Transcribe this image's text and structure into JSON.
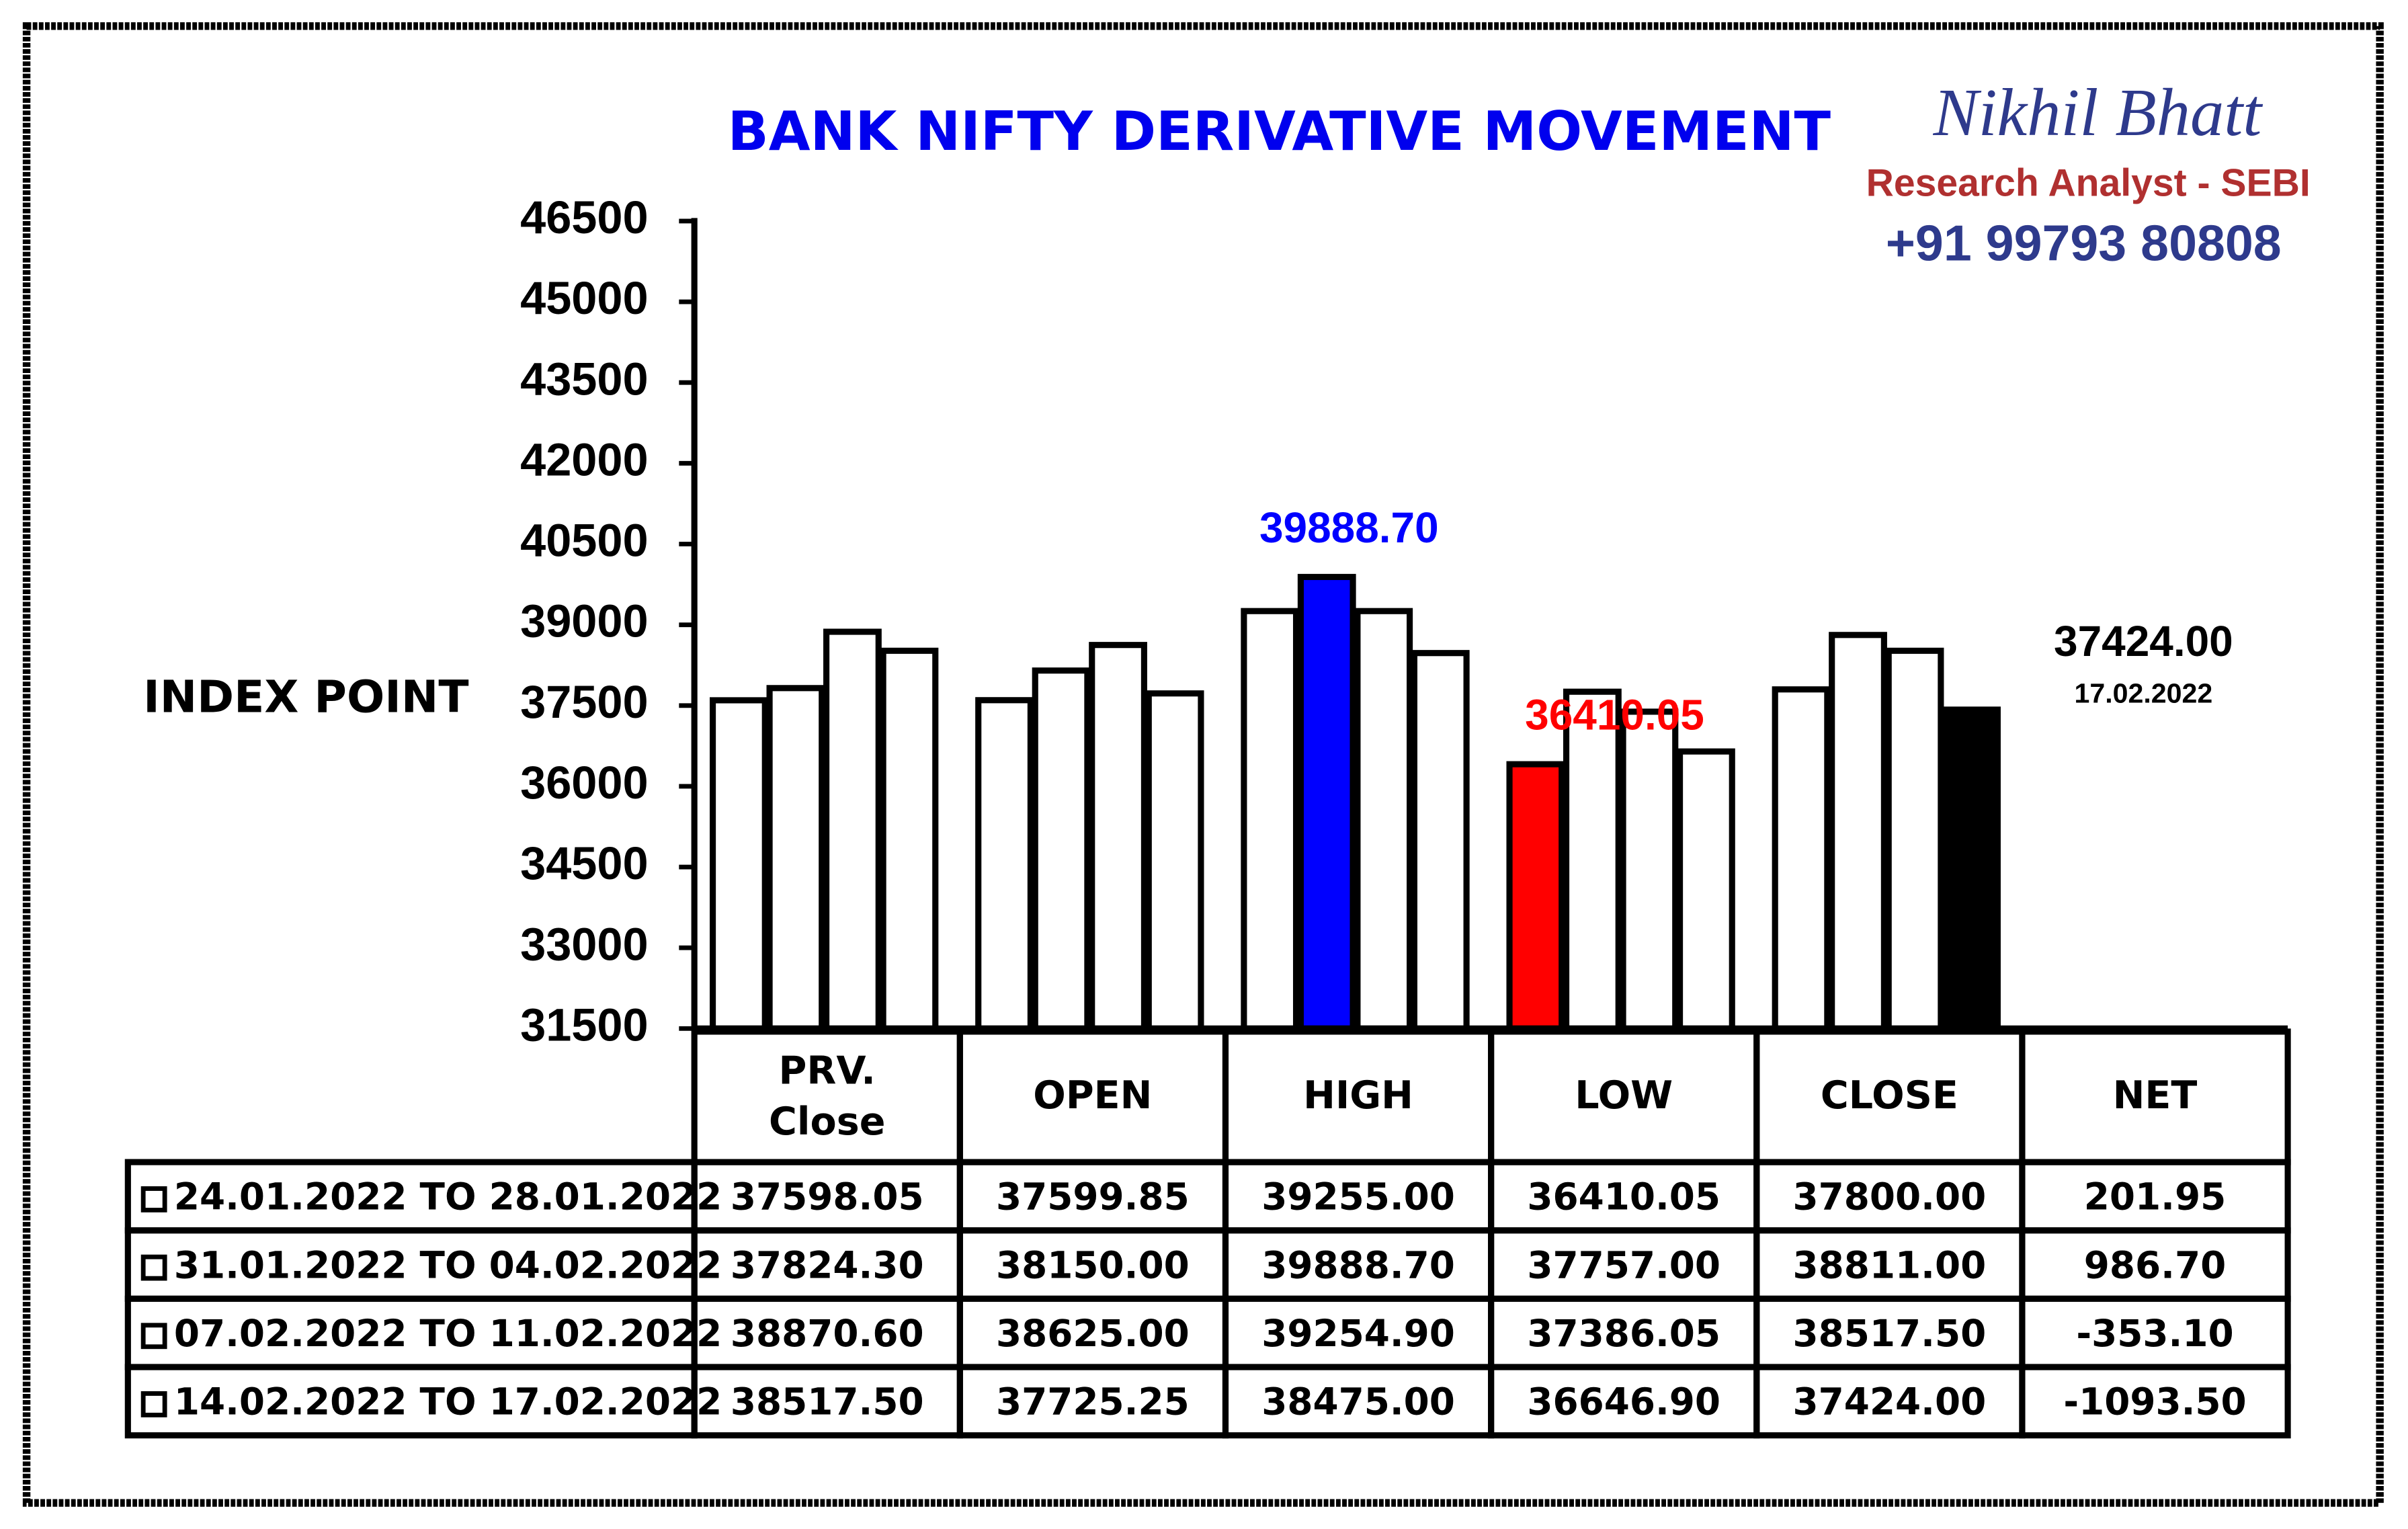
{
  "chart_data": {
    "type": "bar",
    "title": "BANK NIFTY DERIVATIVE MOVEMENT",
    "brand": {
      "name": "Nikhil Bhatt",
      "role": "Research Analyst - SEBI",
      "phone": "+91 99793 80808"
    },
    "y_label": "INDEX POINT",
    "categories": [
      "PRV. Close",
      "OPEN",
      "HIGH",
      "LOW",
      "CLOSE"
    ],
    "net_header": "NET",
    "note": "17.02.2022",
    "ylim": [
      31500,
      46500
    ],
    "yticks": [
      31500,
      33000,
      34500,
      36000,
      37500,
      39000,
      40500,
      42000,
      43500,
      45000,
      46500
    ],
    "series": [
      {
        "name": "24.01.2022 TO 28.01.2022",
        "values": [
          37598.05,
          37599.85,
          39255,
          36410.05,
          37800
        ],
        "value_labels": [
          "37598.05",
          "37599.85",
          "39255.00",
          "36410.05",
          "37800.00"
        ],
        "net": "201.95",
        "colors": [
          "#ffffff",
          "#ffffff",
          "#ffffff",
          "#ff0000",
          "#ffffff"
        ]
      },
      {
        "name": "31.01.2022 TO 04.02.2022",
        "values": [
          37824.3,
          38150,
          39888.7,
          37757,
          38811
        ],
        "value_labels": [
          "37824.30",
          "38150.00",
          "39888.70",
          "37757.00",
          "38811.00"
        ],
        "net": "986.70",
        "colors": [
          "#ffffff",
          "#ffffff",
          "#0000ff",
          "#ffffff",
          "#ffffff"
        ]
      },
      {
        "name": "07.02.2022 TO 11.02.2022",
        "values": [
          38870.6,
          38625,
          39254.9,
          37386.05,
          38517.5
        ],
        "value_labels": [
          "38870.60",
          "38625.00",
          "39254.90",
          "37386.05",
          "38517.50"
        ],
        "net": "-353.10",
        "colors": [
          "#ffffff",
          "#ffffff",
          "#ffffff",
          "#ffffff",
          "#ffffff"
        ]
      },
      {
        "name": "14.02.2022 TO 17.02.2022",
        "values": [
          38517.5,
          37725.25,
          38475,
          36646.9,
          37424
        ],
        "value_labels": [
          "38517.50",
          "37725.25",
          "38475.00",
          "36646.90",
          "37424.00"
        ],
        "net": "-1093.50",
        "colors": [
          "#ffffff",
          "#ffffff",
          "#ffffff",
          "#ffffff",
          "#000000"
        ]
      }
    ]
  }
}
